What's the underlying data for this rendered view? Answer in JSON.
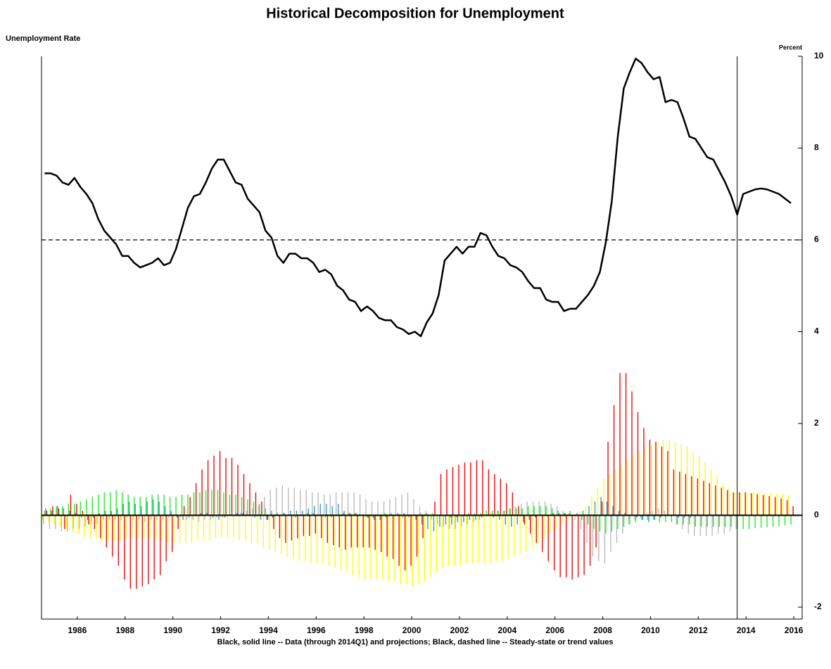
{
  "chart_data": {
    "type": "bar_line",
    "title": "Historical Decomposition for Unemployment",
    "y_axis_title": "Unemployment Rate",
    "y_axis_unit": "Percent",
    "footnote": "Black, solid line -- Data (through 2014Q1) and projections; Black, dashed line -- Steady-state or trend values",
    "xlim": [
      1985,
      2016.85
    ],
    "xticks": [
      {
        "value": 1986.5,
        "label": "1986"
      },
      {
        "value": 1988.5,
        "label": "1988"
      },
      {
        "value": 1990.5,
        "label": "1990"
      },
      {
        "value": 1992.5,
        "label": "1992"
      },
      {
        "value": 1994.5,
        "label": "1994"
      },
      {
        "value": 1996.5,
        "label": "1996"
      },
      {
        "value": 1998.5,
        "label": "1998"
      },
      {
        "value": 2000.5,
        "label": "2000"
      },
      {
        "value": 2002.5,
        "label": "2002"
      },
      {
        "value": 2004.5,
        "label": "2004"
      },
      {
        "value": 2006.5,
        "label": "2006"
      },
      {
        "value": 2008.5,
        "label": "2008"
      },
      {
        "value": 2010.5,
        "label": "2010"
      },
      {
        "value": 2012.5,
        "label": "2012"
      },
      {
        "value": 2014.5,
        "label": "2014"
      },
      {
        "value": 2016.5,
        "label": "2016"
      }
    ],
    "ylim": [
      -2.26,
      10
    ],
    "yticks": [
      -2,
      0,
      2,
      4,
      6,
      8,
      10
    ],
    "y_axis_side": "right",
    "hline": {
      "y": 6,
      "style": "dashed"
    },
    "vline": {
      "x": 2014.13
    },
    "x": [
      1985.13,
      1985.38,
      1985.63,
      1985.88,
      1986.13,
      1986.38,
      1986.63,
      1986.88,
      1987.13,
      1987.38,
      1987.63,
      1987.88,
      1988.13,
      1988.38,
      1988.63,
      1988.88,
      1989.13,
      1989.38,
      1989.63,
      1989.88,
      1990.13,
      1990.38,
      1990.63,
      1990.88,
      1991.13,
      1991.38,
      1991.63,
      1991.88,
      1992.13,
      1992.38,
      1992.63,
      1992.88,
      1993.13,
      1993.38,
      1993.63,
      1993.88,
      1994.13,
      1994.38,
      1994.63,
      1994.88,
      1995.13,
      1995.38,
      1995.63,
      1995.88,
      1996.13,
      1996.38,
      1996.63,
      1996.88,
      1997.13,
      1997.38,
      1997.63,
      1997.88,
      1998.13,
      1998.38,
      1998.63,
      1998.88,
      1999.13,
      1999.38,
      1999.63,
      1999.88,
      2000.13,
      2000.38,
      2000.63,
      2000.88,
      2001.13,
      2001.38,
      2001.63,
      2001.88,
      2002.13,
      2002.38,
      2002.63,
      2002.88,
      2003.13,
      2003.38,
      2003.63,
      2003.88,
      2004.13,
      2004.38,
      2004.63,
      2004.88,
      2005.13,
      2005.38,
      2005.63,
      2005.88,
      2006.13,
      2006.38,
      2006.63,
      2006.88,
      2007.13,
      2007.38,
      2007.63,
      2007.88,
      2008.13,
      2008.38,
      2008.63,
      2008.88,
      2009.13,
      2009.38,
      2009.63,
      2009.88,
      2010.13,
      2010.38,
      2010.63,
      2010.88,
      2011.13,
      2011.38,
      2011.63,
      2011.88,
      2012.13,
      2012.38,
      2012.63,
      2012.88,
      2013.13,
      2013.38,
      2013.63,
      2013.88,
      2014.13,
      2014.38,
      2014.63,
      2014.88,
      2015.13,
      2015.38,
      2015.63,
      2015.88,
      2016.13,
      2016.38
    ],
    "series": [
      {
        "mark": "line",
        "color": "#000000",
        "values": [
          7.45,
          7.45,
          7.4,
          7.25,
          7.2,
          7.35,
          7.15,
          7.0,
          6.8,
          6.45,
          6.2,
          6.05,
          5.9,
          5.65,
          5.65,
          5.5,
          5.4,
          5.45,
          5.5,
          5.6,
          5.45,
          5.5,
          5.8,
          6.25,
          6.7,
          6.95,
          7.0,
          7.25,
          7.55,
          7.75,
          7.75,
          7.5,
          7.25,
          7.2,
          6.9,
          6.75,
          6.6,
          6.2,
          6.05,
          5.65,
          5.5,
          5.7,
          5.7,
          5.6,
          5.6,
          5.5,
          5.3,
          5.35,
          5.25,
          5.0,
          4.9,
          4.7,
          4.65,
          4.45,
          4.55,
          4.45,
          4.3,
          4.25,
          4.25,
          4.1,
          4.05,
          3.95,
          4.0,
          3.9,
          4.2,
          4.4,
          4.8,
          5.55,
          5.7,
          5.85,
          5.7,
          5.85,
          5.85,
          6.15,
          6.1,
          5.85,
          5.65,
          5.6,
          5.45,
          5.4,
          5.3,
          5.1,
          4.95,
          4.95,
          4.7,
          4.65,
          4.65,
          4.45,
          4.5,
          4.5,
          4.65,
          4.8,
          5.0,
          5.3,
          5.95,
          6.85,
          8.25,
          9.3,
          9.65,
          9.95,
          9.85,
          9.65,
          9.5,
          9.55,
          9.0,
          9.05,
          9.0,
          8.65,
          8.25,
          8.2,
          8.0,
          7.8,
          7.75,
          7.5,
          7.25,
          6.95,
          6.55,
          7.0,
          7.05,
          7.1,
          7.12,
          7.1,
          7.05,
          7.0,
          6.9,
          6.8
        ]
      },
      {
        "mark": "bar",
        "color": "#ffff00",
        "values": [
          -0.1,
          -0.15,
          -0.2,
          -0.25,
          -0.3,
          -0.35,
          -0.4,
          -0.45,
          -0.5,
          -0.5,
          -0.55,
          -0.55,
          -0.55,
          -0.55,
          -0.5,
          -0.5,
          -0.5,
          -0.5,
          -0.5,
          -0.55,
          -0.55,
          -0.6,
          -0.6,
          -0.6,
          -0.6,
          -0.6,
          -0.55,
          -0.55,
          -0.55,
          -0.5,
          -0.5,
          -0.5,
          -0.5,
          -0.55,
          -0.55,
          -0.6,
          -0.6,
          -0.7,
          -0.75,
          -0.8,
          -0.85,
          -0.9,
          -0.95,
          -1.0,
          -1.0,
          -1.05,
          -1.05,
          -1.05,
          -1.1,
          -1.15,
          -1.2,
          -1.25,
          -1.3,
          -1.35,
          -1.4,
          -1.4,
          -1.4,
          -1.4,
          -1.45,
          -1.45,
          -1.5,
          -1.5,
          -1.55,
          -1.5,
          -1.45,
          -1.35,
          -1.25,
          -1.15,
          -1.1,
          -1.1,
          -1.1,
          -1.05,
          -1.05,
          -1.05,
          -1.05,
          -1.05,
          -1.0,
          -1.0,
          -0.95,
          -0.9,
          -0.85,
          -0.8,
          -0.7,
          -0.6,
          -0.5,
          -0.4,
          -0.3,
          -0.2,
          -0.1,
          0.0,
          0.1,
          0.2,
          0.4,
          0.6,
          0.8,
          0.9,
          1.0,
          1.1,
          1.2,
          1.3,
          1.4,
          1.5,
          1.55,
          1.6,
          1.65,
          1.65,
          1.6,
          1.55,
          1.5,
          1.4,
          1.3,
          1.15,
          1.0,
          0.85,
          0.7,
          0.6,
          0.5,
          0.5,
          0.5,
          0.5,
          0.5,
          0.48,
          0.48,
          0.47,
          0.46,
          0.45
        ]
      },
      {
        "mark": "bar",
        "color": "#bbbbbb",
        "values": [
          -0.2,
          -0.3,
          -0.3,
          -0.35,
          -0.35,
          -0.3,
          -0.3,
          -0.25,
          -0.2,
          -0.2,
          -0.1,
          -0.1,
          -0.1,
          -0.1,
          -0.05,
          -0.1,
          -0.1,
          -0.15,
          -0.1,
          -0.1,
          -0.1,
          -0.05,
          0.0,
          -0.05,
          -0.1,
          -0.1,
          -0.15,
          -0.1,
          -0.1,
          -0.05,
          -0.05,
          0.0,
          0.0,
          0.05,
          0.1,
          0.15,
          0.2,
          0.4,
          0.55,
          0.6,
          0.65,
          0.6,
          0.6,
          0.55,
          0.55,
          0.5,
          0.5,
          0.45,
          0.45,
          0.5,
          0.5,
          0.5,
          0.5,
          0.45,
          0.35,
          0.3,
          0.3,
          0.3,
          0.35,
          0.4,
          0.45,
          0.5,
          0.35,
          0.2,
          0.1,
          -0.1,
          -0.2,
          -0.25,
          -0.3,
          -0.3,
          -0.25,
          -0.2,
          -0.15,
          -0.1,
          0.0,
          0.05,
          0.1,
          0.1,
          0.15,
          0.2,
          0.25,
          0.3,
          0.3,
          0.3,
          0.3,
          0.25,
          0.2,
          0.1,
          0.05,
          -0.1,
          -0.3,
          -0.6,
          -0.9,
          -1.0,
          -1.05,
          -0.8,
          -0.6,
          -0.4,
          -0.2,
          -0.1,
          -0.05,
          0.05,
          0.1,
          0.15,
          0.1,
          0.0,
          -0.2,
          -0.3,
          -0.4,
          -0.45,
          -0.45,
          -0.45,
          -0.45,
          -0.4,
          -0.4,
          -0.35,
          -0.3,
          0.0,
          0.0,
          0.0,
          0.0,
          0.0,
          0.0,
          0.0,
          0.0,
          0.0
        ]
      },
      {
        "mark": "bar",
        "color": "#22ee22",
        "values": [
          0.1,
          0.15,
          0.2,
          0.2,
          0.25,
          0.25,
          0.3,
          0.35,
          0.4,
          0.45,
          0.5,
          0.5,
          0.55,
          0.5,
          0.45,
          0.4,
          0.4,
          0.4,
          0.45,
          0.45,
          0.45,
          0.4,
          0.4,
          0.45,
          0.45,
          0.5,
          0.5,
          0.55,
          0.55,
          0.55,
          0.5,
          0.45,
          0.45,
          0.4,
          0.35,
          0.3,
          0.25,
          0.15,
          0.1,
          0.05,
          0.05,
          0.0,
          -0.05,
          0.0,
          0.05,
          0.05,
          0.0,
          -0.05,
          -0.05,
          0.0,
          0.05,
          0.05,
          0.05,
          0.0,
          -0.05,
          -0.05,
          0.0,
          0.05,
          0.05,
          0.0,
          -0.05,
          -0.05,
          0.0,
          0.05,
          0.05,
          0.05,
          0.0,
          0.0,
          -0.05,
          -0.05,
          0.0,
          0.05,
          0.05,
          0.05,
          0.1,
          0.1,
          0.1,
          0.1,
          0.15,
          0.15,
          0.15,
          0.2,
          0.2,
          0.2,
          0.2,
          0.15,
          0.1,
          0.05,
          0.1,
          0.0,
          -0.1,
          -0.2,
          -0.3,
          -0.35,
          -0.4,
          -0.35,
          -0.3,
          -0.25,
          -0.2,
          -0.15,
          -0.1,
          -0.1,
          -0.1,
          -0.15,
          -0.15,
          -0.15,
          -0.2,
          -0.2,
          -0.2,
          -0.25,
          -0.25,
          -0.25,
          -0.25,
          -0.25,
          -0.25,
          -0.25,
          -0.3,
          -0.3,
          -0.3,
          -0.28,
          -0.27,
          -0.26,
          -0.25,
          -0.24,
          -0.22,
          -0.2
        ]
      },
      {
        "mark": "bar",
        "color": "#3399cc",
        "values": [
          0.15,
          0.1,
          0.2,
          0.15,
          0.1,
          0.05,
          -0.05,
          -0.1,
          -0.05,
          0.05,
          0.1,
          0.1,
          0.15,
          0.25,
          0.3,
          0.25,
          0.2,
          0.3,
          0.35,
          0.3,
          0.2,
          0.1,
          -0.05,
          -0.1,
          -0.05,
          0.0,
          0.05,
          0.05,
          -0.05,
          -0.1,
          -0.05,
          0.0,
          0.05,
          0.05,
          0.0,
          -0.05,
          -0.1,
          -0.1,
          -0.05,
          0.0,
          0.05,
          0.1,
          0.1,
          0.1,
          0.15,
          0.2,
          0.25,
          0.25,
          0.2,
          0.25,
          0.1,
          0.05,
          0.05,
          0.0,
          -0.05,
          -0.1,
          -0.1,
          -0.05,
          0.0,
          0.05,
          0.05,
          0.0,
          -0.1,
          -0.2,
          -0.3,
          -0.35,
          -0.25,
          -0.2,
          -0.2,
          -0.15,
          -0.15,
          -0.1,
          -0.1,
          -0.05,
          0.0,
          -0.05,
          -0.1,
          -0.2,
          -0.25,
          -0.2,
          -0.15,
          -0.1,
          -0.05,
          0.0,
          0.0,
          0.05,
          0.05,
          0.05,
          0.0,
          0.05,
          0.1,
          0.2,
          0.3,
          0.4,
          0.3,
          0.2,
          0.1,
          0.05,
          0.0,
          -0.05,
          -0.1,
          -0.15,
          -0.1,
          -0.05,
          0.0,
          0.0,
          -0.05,
          -0.05,
          -0.05,
          0.0,
          0.0,
          0.0,
          0.0,
          0.0,
          0.0,
          0.0,
          0.0,
          0.0,
          0.0,
          0.0,
          0.0,
          0.0,
          0.0,
          0.0,
          0.0,
          0.0
        ]
      },
      {
        "mark": "bar",
        "color": "#ff0000",
        "values": [
          0.1,
          0.2,
          0.15,
          -0.3,
          0.45,
          0.25,
          0.1,
          -0.2,
          -0.3,
          -0.5,
          -0.7,
          -0.9,
          -1.1,
          -1.4,
          -1.6,
          -1.6,
          -1.55,
          -1.5,
          -1.4,
          -1.3,
          -1.0,
          -0.8,
          -0.3,
          0.2,
          0.4,
          0.7,
          1.0,
          1.2,
          1.3,
          1.4,
          1.25,
          1.25,
          1.1,
          0.9,
          0.7,
          0.5,
          0.3,
          -0.1,
          -0.3,
          -0.5,
          -0.6,
          -0.55,
          -0.5,
          -0.45,
          -0.45,
          -0.4,
          -0.5,
          -0.6,
          -0.65,
          -0.7,
          -0.75,
          -0.7,
          -0.7,
          -0.7,
          -0.7,
          -0.75,
          -0.8,
          -0.9,
          -0.95,
          -1.1,
          -1.2,
          -1.1,
          -0.9,
          -0.5,
          0.0,
          0.3,
          0.9,
          1.0,
          1.05,
          1.1,
          1.15,
          1.15,
          1.2,
          1.2,
          1.0,
          0.9,
          0.8,
          0.7,
          0.5,
          0.2,
          -0.2,
          -0.4,
          -0.6,
          -0.8,
          -1.0,
          -1.2,
          -1.35,
          -1.35,
          -1.4,
          -1.35,
          -1.3,
          -1.1,
          -0.7,
          0.3,
          1.6,
          2.4,
          3.1,
          3.1,
          2.7,
          2.25,
          1.9,
          1.65,
          1.6,
          1.5,
          1.4,
          1.0,
          0.95,
          0.9,
          0.85,
          0.8,
          0.75,
          0.7,
          0.65,
          0.6,
          0.55,
          0.5,
          0.5,
          0.5,
          0.48,
          0.46,
          0.44,
          0.42,
          0.4,
          0.37,
          0.33,
          0.2
        ]
      }
    ]
  }
}
